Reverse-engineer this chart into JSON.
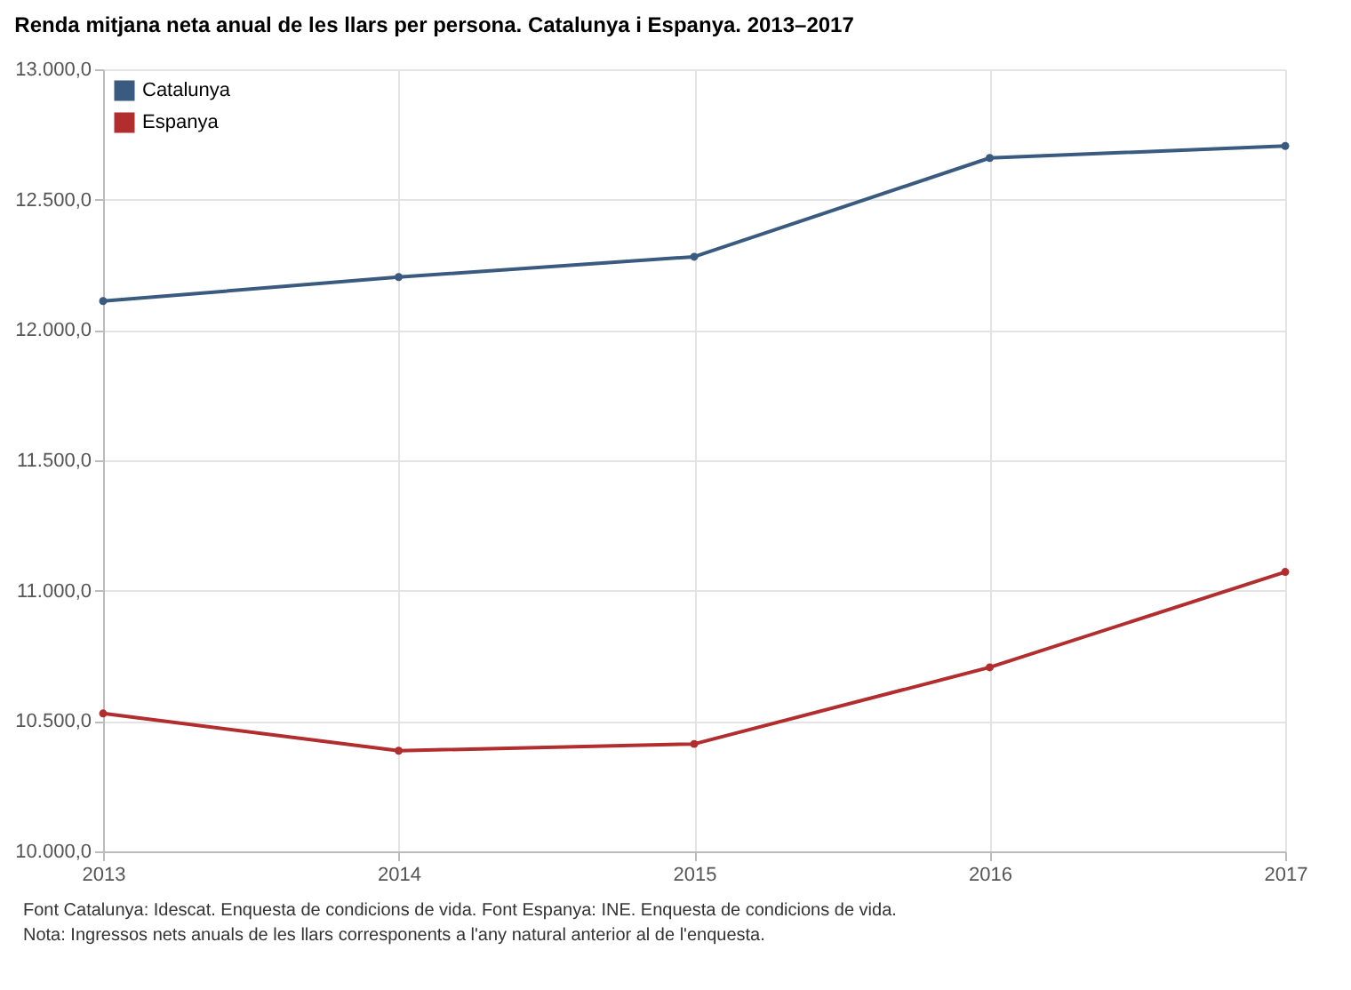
{
  "chart_data": {
    "type": "line",
    "title": "Renda mitjana neta anual de les llars per persona. Catalunya i Espanya. 2013–2017",
    "x": [
      2013,
      2014,
      2015,
      2016,
      2017
    ],
    "series": [
      {
        "name": "Catalunya",
        "color": "#3b5a80",
        "values": [
          12111,
          12203,
          12281,
          12660,
          12706
        ]
      },
      {
        "name": "Espanya",
        "color": "#b22e2e",
        "values": [
          10529,
          10386,
          10412,
          10706,
          11072
        ]
      }
    ],
    "xlim": [
      2013,
      2017
    ],
    "xticks": [
      2013,
      2014,
      2015,
      2016,
      2017
    ],
    "ylim": [
      10000,
      13000
    ],
    "yticks": [
      {
        "value": 10000,
        "label": "10.000,0"
      },
      {
        "value": 10500,
        "label": "10.500,0"
      },
      {
        "value": 11000,
        "label": "11.000,0"
      },
      {
        "value": 11500,
        "label": "11.500,0"
      },
      {
        "value": 12000,
        "label": "12.000,0"
      },
      {
        "value": 12500,
        "label": "12.500,0"
      },
      {
        "value": 13000,
        "label": "13.000,0"
      }
    ],
    "grid": true,
    "legend": "top left",
    "marker": "circle",
    "line_style": "solid",
    "annotations": [
      "Font Catalunya: Idescat. Enquesta de condicions de vida. Font Espanya: INE. Enquesta de condicions de vida.",
      "Nota: Ingressos nets anuals de les llars corresponents a l'any natural anterior al de l'enquesta."
    ]
  }
}
